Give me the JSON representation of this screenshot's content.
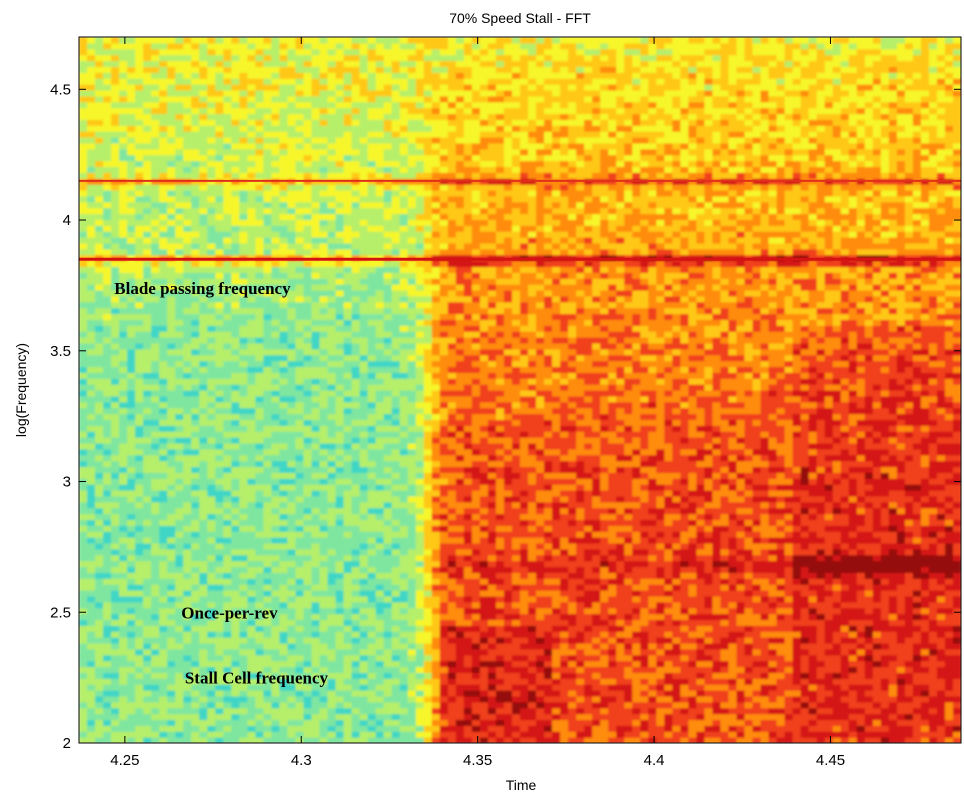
{
  "chart_data": {
    "type": "heatmap",
    "title": "70% Speed Stall - FFT",
    "xlabel": "Time",
    "ylabel": "log(Frequency)",
    "xlim": [
      4.237,
      4.487
    ],
    "ylim": [
      2.0,
      4.7
    ],
    "x_ticks": [
      {
        "value": 4.25,
        "label": "4.25"
      },
      {
        "value": 4.3,
        "label": "4.3"
      },
      {
        "value": 4.35,
        "label": "4.35"
      },
      {
        "value": 4.4,
        "label": "4.4"
      },
      {
        "value": 4.45,
        "label": "4.45"
      }
    ],
    "y_ticks": [
      {
        "value": 2.0,
        "label": "2"
      },
      {
        "value": 2.5,
        "label": "2.5"
      },
      {
        "value": 3.0,
        "label": "3"
      },
      {
        "value": 3.5,
        "label": "3.5"
      },
      {
        "value": 4.0,
        "label": "4"
      },
      {
        "value": 4.5,
        "label": "4.5"
      }
    ],
    "colormap": [
      "#1c3fa8",
      "#2fa6d6",
      "#3fd6c6",
      "#7fe6a0",
      "#b6ef6a",
      "#f6f62a",
      "#ffc818",
      "#ff8c10",
      "#f0401a",
      "#d41212",
      "#960808"
    ],
    "stall_onset_time": 4.336,
    "features": [
      {
        "name": "blade_passing",
        "log_freq": 3.85
      },
      {
        "name": "harmonic",
        "log_freq": 4.15
      },
      {
        "name": "once_per_rev",
        "log_freq": 2.5
      },
      {
        "name": "stall_cell",
        "log_freq": 2.68
      }
    ],
    "annotations": [
      {
        "text": "Blade passing frequency",
        "x": 4.247,
        "y": 3.74
      },
      {
        "text": "Once-per-rev",
        "x": 4.266,
        "y": 2.5
      },
      {
        "text": "Stall Cell frequency",
        "x": 4.267,
        "y": 2.25
      }
    ]
  }
}
